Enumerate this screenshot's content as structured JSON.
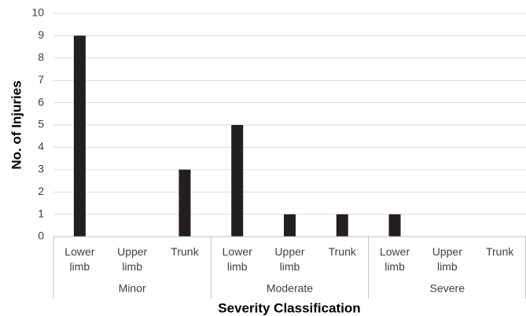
{
  "chart_data": {
    "type": "bar",
    "y_label": "No. of Injuries",
    "x_label": "Severity Classification",
    "color": "#231f20",
    "grid": true,
    "ylim": [
      0,
      10
    ],
    "yticks": [
      0,
      1,
      2,
      3,
      4,
      5,
      6,
      7,
      8,
      9,
      10
    ],
    "groups": [
      {
        "name": "Minor",
        "categories": [
          "Lower limb",
          "Upper limb",
          "Trunk"
        ],
        "values": [
          9,
          0,
          3
        ]
      },
      {
        "name": "Moderate",
        "categories": [
          "Lower limb",
          "Upper limb",
          "Trunk"
        ],
        "values": [
          5,
          1,
          1
        ]
      },
      {
        "name": "Severe",
        "categories": [
          "Lower limb",
          "Upper limb",
          "Trunk"
        ],
        "values": [
          1,
          0,
          0
        ]
      }
    ]
  }
}
